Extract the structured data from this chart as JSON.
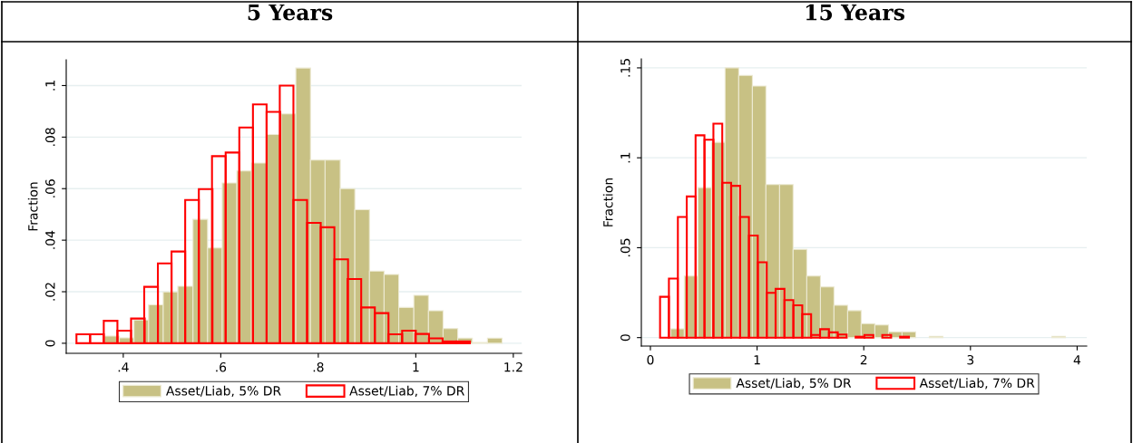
{
  "chart_data": [
    {
      "type": "histogram",
      "title": "5 Years",
      "ylabel": "Fraction",
      "bins": [
        0.361,
        0.392,
        0.422,
        0.452,
        0.482,
        0.512,
        0.543,
        0.573,
        0.603,
        0.633,
        0.663,
        0.694,
        0.724,
        0.754,
        0.784,
        0.814,
        0.845,
        0.875,
        0.905,
        0.935,
        0.965,
        0.996,
        1.026,
        1.056,
        1.086,
        1.116,
        1.147,
        1.177
      ],
      "series": [
        {
          "name": "Asset/Liab, 5% DR",
          "color": "#c8c184",
          "values": [
            0.0028,
            0.0021,
            0.009,
            0.0149,
            0.0199,
            0.0221,
            0.0481,
            0.037,
            0.0622,
            0.0669,
            0.0699,
            0.081,
            0.089,
            0.1068,
            0.0711,
            0.0711,
            0.06,
            0.0518,
            0.028,
            0.0267,
            0.0139,
            0.0186,
            0.0126,
            0.0057,
            0.002,
            0.0003,
            0.002
          ]
        },
        {
          "name": "Asset/Liab, 7% DR",
          "type": "bar",
          "color": "#ff0000",
          "x": [
            0.318,
            0.346,
            0.374,
            0.402,
            0.43,
            0.457,
            0.485,
            0.513,
            0.541,
            0.569,
            0.596,
            0.624,
            0.652,
            0.68,
            0.708,
            0.735,
            0.763,
            0.791,
            0.819,
            0.847,
            0.874,
            0.902,
            0.93,
            0.958,
            0.986,
            1.013,
            1.041,
            1.069,
            1.097
          ],
          "values": [
            0.0035,
            0.0035,
            0.0087,
            0.0049,
            0.0096,
            0.0219,
            0.031,
            0.0356,
            0.0556,
            0.0598,
            0.0726,
            0.074,
            0.0837,
            0.0927,
            0.0898,
            0.1,
            0.0556,
            0.0467,
            0.045,
            0.0326,
            0.0249,
            0.0139,
            0.0117,
            0.0035,
            0.0049,
            0.0036,
            0.0019,
            0.0007,
            0.0007
          ]
        }
      ],
      "xlim": [
        0.283,
        1.217
      ],
      "ylim": [
        -0.0039,
        0.11
      ],
      "xticks": [
        {
          "value": 0.4,
          "label": ".4"
        },
        {
          "value": 0.6,
          "label": ".6"
        },
        {
          "value": 0.8,
          "label": ".8"
        },
        1,
        1.2
      ],
      "yticks": [
        0,
        {
          "value": 0.02,
          "label": ".02"
        },
        {
          "value": 0.04,
          "label": ".04"
        },
        {
          "value": 0.06,
          "label": ".06"
        },
        {
          "value": 0.08,
          "label": ".08"
        },
        {
          "value": 0.1,
          "label": ".1"
        }
      ],
      "grid": "y",
      "legend": "bottom"
    },
    {
      "type": "histogram",
      "title": "15 Years",
      "ylabel": "Fraction",
      "bins": [
        0.19,
        0.318,
        0.445,
        0.573,
        0.7,
        0.828,
        0.956,
        1.083,
        1.211,
        1.338,
        1.466,
        1.594,
        1.721,
        1.849,
        1.976,
        2.104,
        2.232,
        2.359,
        2.487,
        2.614,
        2.742,
        2.87,
        2.997,
        3.125,
        3.252,
        3.38,
        3.508,
        3.635,
        3.763,
        3.89
      ],
      "series": [
        {
          "name": "Asset/Liab, 5% DR",
          "color": "#c8c184",
          "values": [
            0.0049,
            0.0343,
            0.0834,
            0.1086,
            0.15,
            0.1458,
            0.1399,
            0.0851,
            0.0851,
            0.0491,
            0.0343,
            0.0282,
            0.018,
            0.015,
            0.0078,
            0.007,
            0.0032,
            0.0032,
            0,
            0.0007,
            0,
            0,
            0,
            0,
            0,
            0,
            0,
            0,
            0.0007
          ]
        },
        {
          "name": "Asset/Liab, 7% DR",
          "type": "bar",
          "color": "#ff0000",
          "x": [
            0.132,
            0.215,
            0.299,
            0.382,
            0.465,
            0.549,
            0.632,
            0.715,
            0.799,
            0.882,
            0.965,
            1.049,
            1.132,
            1.215,
            1.298,
            1.382,
            1.465,
            1.548,
            1.632,
            1.715,
            1.798,
            1.882,
            1.965,
            2.048,
            2.132,
            2.215,
            2.298,
            2.382
          ],
          "values": [
            0.0227,
            0.0328,
            0.0671,
            0.0785,
            0.1125,
            0.11,
            0.119,
            0.0861,
            0.0844,
            0.0671,
            0.0568,
            0.0419,
            0.0249,
            0.0271,
            0.0209,
            0.018,
            0.0131,
            0.0015,
            0.0047,
            0.0029,
            0.0017,
            0,
            0.0005,
            0.0015,
            0,
            0.0015,
            0,
            0.0005
          ]
        }
      ],
      "xlim": [
        -0.085,
        4.09
      ],
      "ylim": [
        -0.0047,
        0.155
      ],
      "xticks": [
        0,
        1,
        2,
        3,
        4
      ],
      "yticks": [
        0,
        {
          "value": 0.05,
          "label": ".05"
        },
        {
          "value": 0.1,
          "label": ".1"
        },
        {
          "value": 0.15,
          "label": ".15"
        }
      ],
      "grid": "y",
      "legend": "bottom"
    }
  ]
}
